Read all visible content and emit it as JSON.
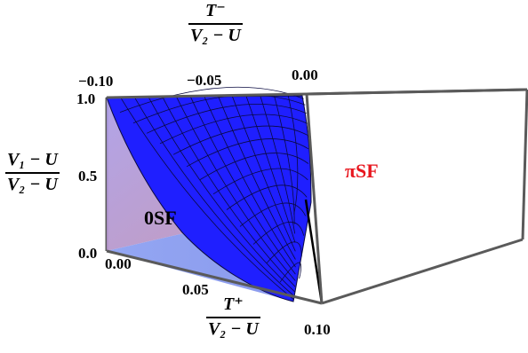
{
  "axes": {
    "t_minus": {
      "numerator": "T⁻",
      "denominator": "V₂ − U",
      "ticks": [
        "−0.10",
        "−0.05",
        "0.00"
      ]
    },
    "t_plus": {
      "numerator": "T⁺",
      "denominator": "V₂ − U",
      "ticks": [
        "0.00",
        "0.05",
        "0.10"
      ]
    },
    "vertical": {
      "numerator": "V₁ − U",
      "denominator": "V₂ − U",
      "ticks": [
        "0.0",
        "0.5",
        "1.0"
      ]
    }
  },
  "regions": {
    "zero_sf": "0SF",
    "pi_sf": "πSF"
  },
  "colors": {
    "surface": "#1f1fff",
    "mesh": "#0a0a40",
    "zero_sf_fill": "#9f8fe6",
    "floor_fill": "#8fa0f0",
    "pi_sf_label": "#e8161e",
    "box": "#5a5a5a"
  }
}
